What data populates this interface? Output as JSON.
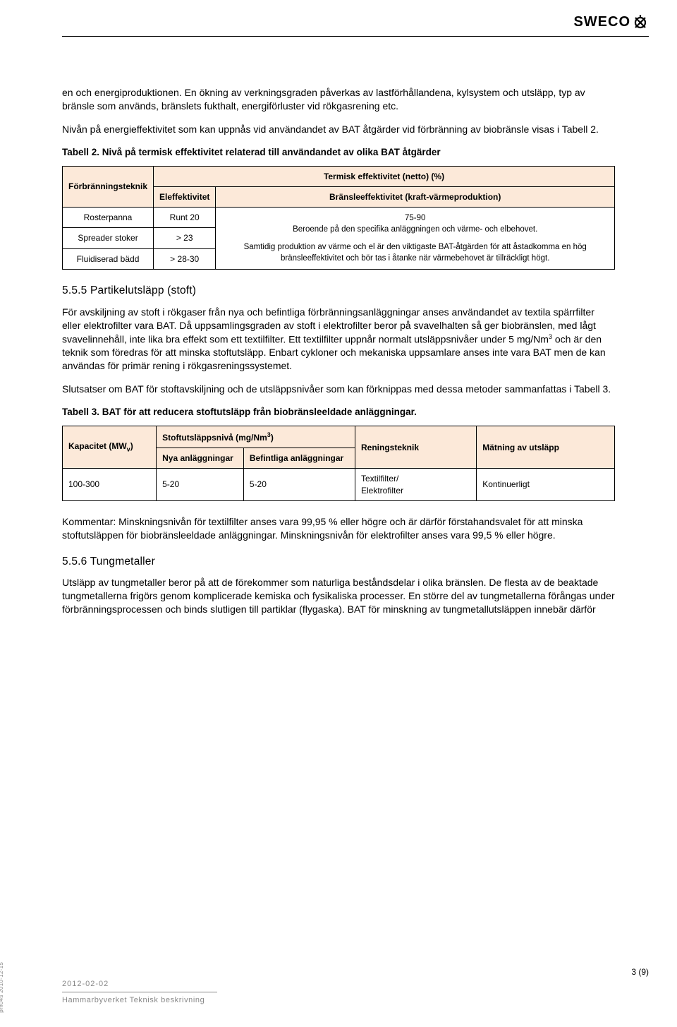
{
  "header": {
    "logo_text": "SWECO"
  },
  "body": {
    "p1": "en och energiproduktionen. En ökning av verkningsgraden påverkas av lastförhållandena, kylsystem och utsläpp, typ av bränsle som används, bränslets fukthalt, energiförluster vid rökgasrening etc.",
    "p2": "Nivån på energieffektivitet som kan uppnås vid användandet av BAT åtgärder vid förbränning av biobränsle visas i Tabell 2.",
    "t2_caption": "Tabell 2. Nivå på termisk effektivitet relaterad till användandet av olika BAT åtgärder",
    "t2": {
      "hdr_left": "Förbränningsteknik",
      "hdr_top": "Termisk effektivitet (netto) (%)",
      "hdr_el": "Eleffektivitet",
      "hdr_br": "Bränsleeffektivitet (kraft-värmeproduktion)",
      "r1c1": "Rosterpanna",
      "r1c2": "Runt 20",
      "r2c1": "Spreader stoker",
      "r2c2": "> 23",
      "r3c1": "Fluidiserad bädd",
      "r3c2": "> 28-30",
      "merged_a": "75-90\nBeroende på den specifika anläggningen och värme- och elbehovet.",
      "merged_b": "Samtidig produktion av värme och el är den viktigaste BAT-åtgärden för att åstadkomma en hög bränsleeffektivitet och bör tas i åtanke när värmebehovet är tillräckligt högt."
    },
    "h_555": "5.5.5 Partikelutsläpp (stoft)",
    "p3": "För avskiljning av stoft i rökgaser från nya och befintliga förbränningsanläggningar anses användandet av textila spärrfilter eller elektrofilter vara BAT. Då uppsamlingsgraden av stoft i elektrofilter beror på svavelhalten så ger biobränslen, med lågt svavelinnehåll, inte lika bra effekt som ett textilfilter. Ett textilfilter uppnår normalt utsläppsnivåer under 5 mg/Nm",
    "p3b": " och är den teknik som föredras för att minska stoftutsläpp. Enbart cykloner och mekaniska uppsamlare anses inte vara BAT men de kan användas för primär rening i rökgasreningssystemet.",
    "p4": "Slutsatser om BAT för stoftavskiljning och de utsläppsnivåer som kan förknippas med dessa metoder sammanfattas i Tabell 3.",
    "t3_caption": "Tabell 3. BAT för att reducera stoftutsläpp från biobränsleeldade anläggningar.",
    "t3": {
      "h1a": "Kapacitet (MW",
      "h1b": ")",
      "h2a": "Stoftutsläppsnivå (mg/Nm",
      "h2b": ")",
      "h3": "Reningsteknik",
      "h4": "Mätning av utsläpp",
      "sh1": "Nya anläggningar",
      "sh2": "Befintliga anläggningar",
      "r1c1": "100-300",
      "r1c2": "5-20",
      "r1c3": "5-20",
      "r1c4": "Textilfilter/\nElektrofilter",
      "r1c5": "Kontinuerligt"
    },
    "p5": "Kommentar: Minskningsnivån för textilfilter anses vara 99,95 % eller högre och är därför förstahandsvalet för att minska stoftutsläppen för biobränsleeldade anläggningar. Minskningsnivån för elektrofilter anses vara 99,5 % eller högre.",
    "h_556": "5.5.6 Tungmetaller",
    "p6": "Utsläpp av tungmetaller beror på att de förekommer som naturliga beståndsdelar i olika bränslen. De flesta av de beaktade tungmetallerna frigörs genom komplicerade kemiska och fysikaliska processer. En större del av tungmetallerna förångas under förbränningsprocessen och binds slutligen till partiklar (flygaska). BAT för minskning av tungmetallutsläppen innebär därför"
  },
  "footer": {
    "page": "3 (9)",
    "date": "2012-02-02",
    "doc": "Hammarbyverket Teknisk beskrivning",
    "side": "pm04s 2010-12-15"
  }
}
